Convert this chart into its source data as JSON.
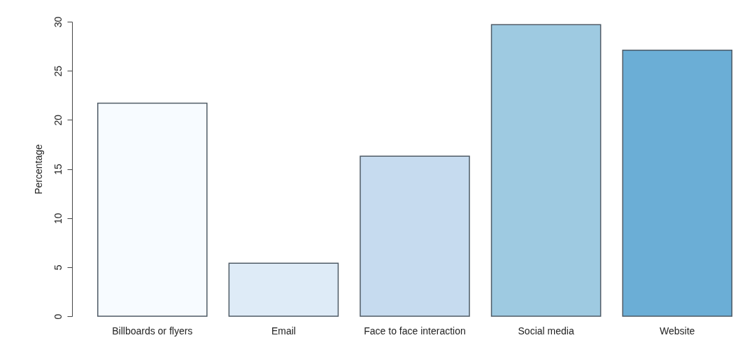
{
  "chart_data": {
    "type": "bar",
    "ylabel": "Percentage",
    "categories": [
      "Billboards or flyers",
      "Email",
      "Face to face interaction",
      "Social media",
      "Website"
    ],
    "values": [
      21.7,
      5.4,
      16.3,
      29.7,
      27.1
    ],
    "colors": [
      "#f7fbff",
      "#deebf7",
      "#c6dbef",
      "#9ecae1",
      "#6baed6"
    ],
    "ylim": [
      0,
      30
    ],
    "yticks": [
      0,
      5,
      10,
      15,
      20,
      25,
      30
    ],
    "grid": false,
    "legend": false
  }
}
